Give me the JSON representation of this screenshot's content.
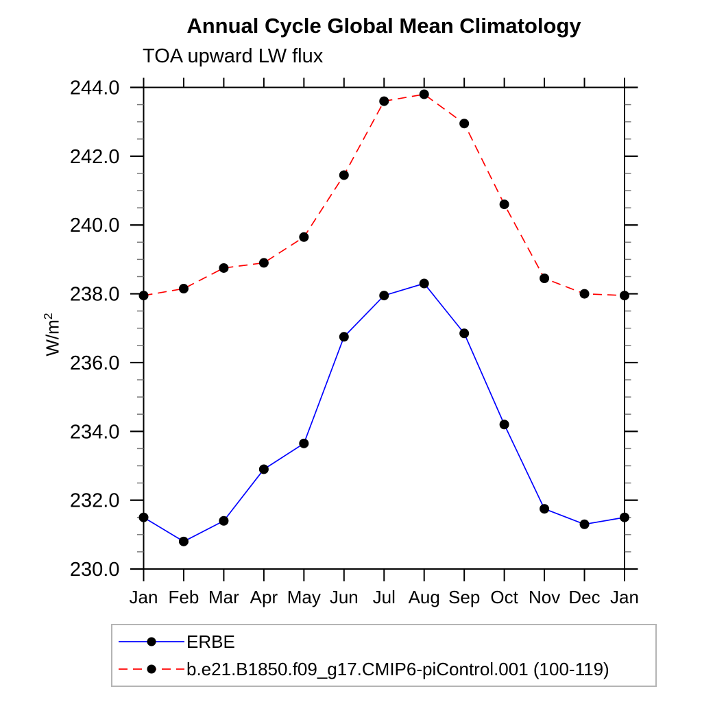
{
  "chart_data": {
    "type": "line",
    "title": "Annual Cycle Global Mean Climatology",
    "subtitle": "TOA upward LW flux",
    "ylabel": "W/m^2",
    "ylabel_base": "W/m",
    "ylabel_exp": "2",
    "categories": [
      "Jan",
      "Feb",
      "Mar",
      "Apr",
      "May",
      "Jun",
      "Jul",
      "Aug",
      "Sep",
      "Oct",
      "Nov",
      "Dec",
      "Jan"
    ],
    "y_axis": {
      "min": 230.0,
      "max": 244.0,
      "major_step": 2.0,
      "minor_step": 0.5,
      "tick_labels": [
        "230.0",
        "232.0",
        "234.0",
        "236.0",
        "238.0",
        "240.0",
        "242.0",
        "244.0"
      ]
    },
    "grid": false,
    "legend_position": "bottom-left",
    "series": [
      {
        "name": "ERBE",
        "color": "#0000ff",
        "line_style": "solid",
        "marker": "circle",
        "marker_color": "#000000",
        "values": [
          231.5,
          230.8,
          231.4,
          232.9,
          233.65,
          236.75,
          237.95,
          238.3,
          236.85,
          234.2,
          231.75,
          231.3,
          231.5
        ]
      },
      {
        "name": "b.e21.B1850.f09_g17.CMIP6-piControl.001 (100-119)",
        "color": "#ff0000",
        "line_style": "dashed",
        "marker": "circle",
        "marker_color": "#000000",
        "values": [
          237.95,
          238.15,
          238.75,
          238.9,
          239.65,
          241.45,
          243.6,
          243.8,
          242.95,
          240.6,
          238.45,
          238.0,
          237.95
        ]
      }
    ]
  }
}
